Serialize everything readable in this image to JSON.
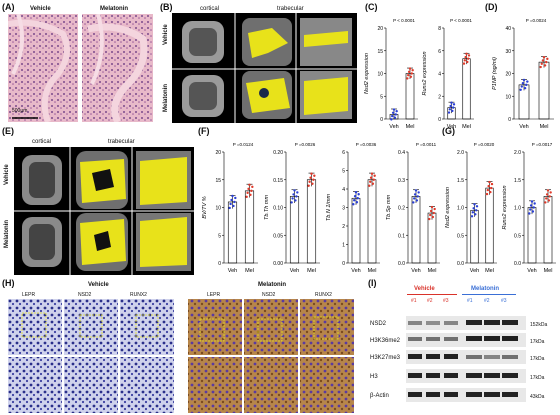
{
  "panels": {
    "A": {
      "label": "(A)",
      "col1": "Vehicle",
      "col2": "Melatonin",
      "scale": "500μm"
    },
    "B": {
      "label": "(B)",
      "top_left": "cortical",
      "top_right": "trabecular",
      "row1": "Vehicle",
      "row2": "Melatonin"
    },
    "C": {
      "label": "(C)"
    },
    "D": {
      "label": "(D)"
    },
    "E": {
      "label": "(E)",
      "top_left": "cortical",
      "top_right": "trabecular",
      "row1": "Vehicle",
      "row2": "Melatonin"
    },
    "F": {
      "label": "(F)"
    },
    "G": {
      "label": "(G)"
    },
    "H": {
      "label": "(H)",
      "group1": "Vehicle",
      "group2": "Melatonin",
      "cols": [
        "LEPR",
        "NSD2",
        "RUNX2",
        "LEPR",
        "NSD2",
        "RUNX2"
      ]
    },
    "I": {
      "label": "(I)",
      "group1": "Vehicle",
      "group2": "Melatonin",
      "lanes": [
        "#1",
        "#2",
        "#3",
        "#1",
        "#2",
        "#3"
      ],
      "bands": [
        "NSD2",
        "H3K36me2",
        "H3K27me3",
        "H3",
        "β-Actin"
      ],
      "kda": [
        "152kDa",
        "17kDa",
        "17kDa",
        "17kDa",
        "43kDa"
      ]
    }
  },
  "chart_data": [
    {
      "type": "bar",
      "panel": "C",
      "ylabel": "Nsd2 expression",
      "categories": [
        "Veh",
        "Mel"
      ],
      "values": [
        1,
        10
      ],
      "pvalue": "P < 0.0001",
      "yticks": [
        "0",
        "5",
        "10",
        "15",
        "20"
      ],
      "ylim": [
        0,
        20
      ]
    },
    {
      "type": "bar",
      "panel": "C",
      "ylabel": "Runx2 expression",
      "categories": [
        "Veh",
        "Mel"
      ],
      "values": [
        1,
        5.3
      ],
      "pvalue": "P < 0.0001",
      "yticks": [
        "0",
        "2",
        "4",
        "6",
        "8"
      ],
      "ylim": [
        0,
        8
      ]
    },
    {
      "type": "bar",
      "panel": "D",
      "ylabel": "P1NP (ng/ml)",
      "categories": [
        "Veh",
        "Mel"
      ],
      "values": [
        15,
        25
      ],
      "pvalue": "P =0.0024",
      "yticks": [
        "0",
        "10",
        "20",
        "30",
        "40"
      ],
      "ylim": [
        0,
        40
      ]
    },
    {
      "type": "bar",
      "panel": "F",
      "ylabel": "BV/TV %",
      "categories": [
        "Veh",
        "Mel"
      ],
      "values": [
        11,
        13
      ],
      "pvalue": "P =0.0124",
      "yticks": [
        "0",
        "5",
        "10",
        "15",
        "20"
      ],
      "ylim": [
        0,
        20
      ]
    },
    {
      "type": "bar",
      "panel": "F",
      "ylabel": "Tb.Th mm",
      "categories": [
        "Veh",
        "Mel"
      ],
      "values": [
        0.12,
        0.15
      ],
      "pvalue": "P =0.0026",
      "yticks": [
        "0.00",
        "0.05",
        "0.10",
        "0.15",
        "0.20"
      ],
      "ylim": [
        0,
        0.2
      ]
    },
    {
      "type": "bar",
      "panel": "F",
      "ylabel": "Tb.N 1/mm",
      "categories": [
        "Veh",
        "Mel"
      ],
      "values": [
        3.5,
        4.5
      ],
      "pvalue": "P =0.0036",
      "yticks": [
        "0",
        "1",
        "2",
        "3",
        "4",
        "5",
        "6"
      ],
      "ylim": [
        0,
        6
      ]
    },
    {
      "type": "bar",
      "panel": "F",
      "ylabel": "Tb.Sp mm",
      "categories": [
        "Veh",
        "Mel"
      ],
      "values": [
        0.24,
        0.18
      ],
      "pvalue": "P =0.0011",
      "yticks": [
        "0.0",
        "0.1",
        "0.2",
        "0.3",
        "0.4"
      ],
      "ylim": [
        0,
        0.4
      ]
    },
    {
      "type": "bar",
      "panel": "G",
      "ylabel": "Nsd2 expression",
      "categories": [
        "Veh",
        "Mel"
      ],
      "values": [
        0.95,
        1.35
      ],
      "pvalue": "P =0.0020",
      "yticks": [
        "0.0",
        "0.5",
        "1.0",
        "1.5",
        "2.0"
      ],
      "ylim": [
        0,
        2
      ]
    },
    {
      "type": "bar",
      "panel": "G",
      "ylabel": "Runx2 expression",
      "categories": [
        "Veh",
        "Mel"
      ],
      "values": [
        1.0,
        1.2
      ],
      "pvalue": "P =0.0017",
      "yticks": [
        "0.0",
        "0.5",
        "1.0",
        "1.5",
        "2.0"
      ],
      "ylim": [
        0,
        2
      ]
    }
  ]
}
